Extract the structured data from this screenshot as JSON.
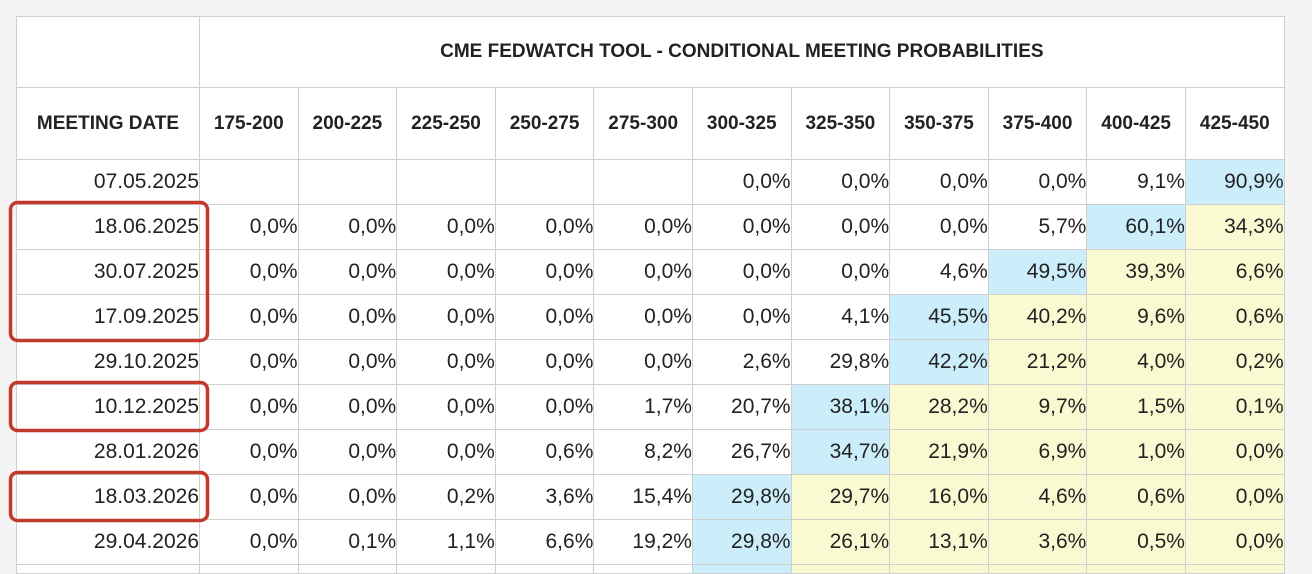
{
  "chart_data": {
    "type": "table",
    "title": "CME FEDWATCH TOOL - CONDITIONAL MEETING PROBABILITIES",
    "row_header": "MEETING DATE",
    "columns": [
      "175-200",
      "200-225",
      "225-250",
      "250-275",
      "275-300",
      "300-325",
      "325-350",
      "350-375",
      "375-400",
      "400-425",
      "425-450"
    ],
    "rows": [
      {
        "date": "07.05.2025",
        "values": [
          "",
          "",
          "",
          "",
          "",
          "0,0%",
          "0,0%",
          "0,0%",
          "0,0%",
          "9,1%",
          "90,9%"
        ]
      },
      {
        "date": "18.06.2025",
        "values": [
          "0,0%",
          "0,0%",
          "0,0%",
          "0,0%",
          "0,0%",
          "0,0%",
          "0,0%",
          "0,0%",
          "5,7%",
          "60,1%",
          "34,3%"
        ]
      },
      {
        "date": "30.07.2025",
        "values": [
          "0,0%",
          "0,0%",
          "0,0%",
          "0,0%",
          "0,0%",
          "0,0%",
          "0,0%",
          "4,6%",
          "49,5%",
          "39,3%",
          "6,6%"
        ]
      },
      {
        "date": "17.09.2025",
        "values": [
          "0,0%",
          "0,0%",
          "0,0%",
          "0,0%",
          "0,0%",
          "0,0%",
          "4,1%",
          "45,5%",
          "40,2%",
          "9,6%",
          "0,6%"
        ]
      },
      {
        "date": "29.10.2025",
        "values": [
          "0,0%",
          "0,0%",
          "0,0%",
          "0,0%",
          "0,0%",
          "2,6%",
          "29,8%",
          "42,2%",
          "21,2%",
          "4,0%",
          "0,2%"
        ]
      },
      {
        "date": "10.12.2025",
        "values": [
          "0,0%",
          "0,0%",
          "0,0%",
          "0,0%",
          "1,7%",
          "20,7%",
          "38,1%",
          "28,2%",
          "9,7%",
          "1,5%",
          "0,1%"
        ]
      },
      {
        "date": "28.01.2026",
        "values": [
          "0,0%",
          "0,0%",
          "0,0%",
          "0,6%",
          "8,2%",
          "26,7%",
          "34,7%",
          "21,9%",
          "6,9%",
          "1,0%",
          "0,0%"
        ]
      },
      {
        "date": "18.03.2026",
        "values": [
          "0,0%",
          "0,0%",
          "0,2%",
          "3,6%",
          "15,4%",
          "29,8%",
          "29,7%",
          "16,0%",
          "4,6%",
          "0,6%",
          "0,0%"
        ]
      },
      {
        "date": "29.04.2026",
        "values": [
          "0,0%",
          "0,1%",
          "1,1%",
          "6,6%",
          "19,2%",
          "29,8%",
          "26,1%",
          "13,1%",
          "3,6%",
          "0,5%",
          "0,0%"
        ]
      }
    ],
    "highlight_max": [
      10,
      9,
      8,
      7,
      7,
      6,
      6,
      5,
      5
    ],
    "highlight_zone_start": [
      null,
      10,
      9,
      8,
      8,
      7,
      7,
      6,
      6
    ],
    "partial_row": {
      "hi_col": 5,
      "zone_start": 6
    },
    "colors": {
      "max": "#cbeefa",
      "zone": "#fafad2",
      "annotation": "#c0392b"
    },
    "circled_rows": [
      [
        1,
        3
      ],
      [
        5,
        5
      ],
      [
        7,
        7
      ]
    ]
  }
}
